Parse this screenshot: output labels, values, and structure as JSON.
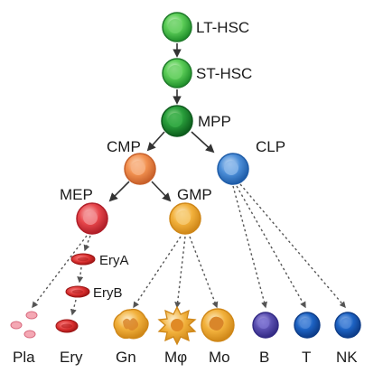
{
  "nodes": {
    "lt_hsc": "LT-HSC",
    "st_hsc": "ST-HSC",
    "mpp": "MPP",
    "cmp": "CMP",
    "clp": "CLP",
    "mep": "MEP",
    "gmp": "GMP",
    "erya": "EryA",
    "eryb": "EryB"
  },
  "bottom_labels": {
    "pla": "Pla",
    "ery": "Ery",
    "gn": "Gn",
    "mphi": "Mφ",
    "mo": "Mo",
    "b": "B",
    "t": "T",
    "nk": "NK"
  },
  "colors": {
    "hsc_green": "#3fbf4a",
    "mpp_green": "#1f8f3a",
    "cmp_orange": "#f29150",
    "clp_blue": "#4c8ed8",
    "mep_red": "#e8474c",
    "gmp_yellow": "#f2b13c",
    "lymph_purple": "#5a4fb0",
    "lymph_blue": "#1d63c4",
    "rbc_red": "#d62c2c",
    "platelet_pink": "#f08a9a",
    "myeloid_orange": "#f29a2c"
  }
}
